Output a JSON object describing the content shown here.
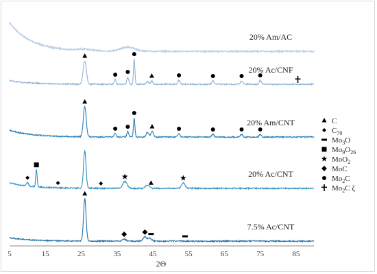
{
  "chart_data": {
    "type": "line",
    "xlabel": "2Θ",
    "ylabel": "",
    "xlim": [
      5,
      90
    ],
    "x_ticks": [
      "5",
      "15",
      "25",
      "35",
      "45",
      "55",
      "65",
      "75",
      "85"
    ],
    "grid": false,
    "legend_position": "right",
    "legend": [
      {
        "symbol": "triangle",
        "name": "C",
        "sub": ""
      },
      {
        "symbol": "diamond-small",
        "name": "C",
        "sub": "70"
      },
      {
        "symbol": "dash",
        "name": "Mo",
        "sub": "3",
        "suffix": "O"
      },
      {
        "symbol": "square",
        "name": "Mo",
        "sub": "9",
        "suffix": "O",
        "sub2": "26"
      },
      {
        "symbol": "star",
        "name": "MoO",
        "sub": "2"
      },
      {
        "symbol": "diamond",
        "name": "MoC",
        "sub": ""
      },
      {
        "symbol": "circle",
        "name": "Mo",
        "sub": "2",
        "suffix": "C"
      },
      {
        "symbol": "cross",
        "name": "Mo",
        "sub": "2",
        "suffix": "C ζ"
      }
    ],
    "series": [
      {
        "name": "20% Am/AC",
        "color": "#bcd0e6",
        "baseline": 75,
        "start_offset": 42,
        "peaks": [
          [
            38,
            6,
            2.0
          ],
          [
            26,
            2,
            2.0
          ]
        ],
        "markers": []
      },
      {
        "name": "20% Ac/CNF",
        "color": "#8fb3d6",
        "baseline": 123,
        "start_offset": 5,
        "peaks": [
          [
            26,
            34,
            0.45
          ],
          [
            34.5,
            7,
            0.25
          ],
          [
            38,
            11,
            0.25
          ],
          [
            39.8,
            37,
            0.2
          ],
          [
            43.5,
            4,
            0.3
          ],
          [
            44.7,
            5,
            0.3
          ],
          [
            52.3,
            6,
            0.3
          ],
          [
            61.8,
            5,
            0.3
          ],
          [
            69.8,
            5,
            0.3
          ],
          [
            75,
            6,
            0.3
          ]
        ],
        "markers": [
          [
            26,
            "triangle"
          ],
          [
            34.5,
            "circle"
          ],
          [
            38,
            "circle"
          ],
          [
            39.8,
            "circle"
          ],
          [
            44.7,
            "triangle"
          ],
          [
            52.3,
            "circle"
          ],
          [
            61.8,
            "circle"
          ],
          [
            69.8,
            "circle"
          ],
          [
            75,
            "circle"
          ],
          [
            85.5,
            "cross"
          ]
        ]
      },
      {
        "name": "20% Am/CNT",
        "color": "#2a7fb8",
        "baseline": 200,
        "start_offset": 10,
        "peaks": [
          [
            26,
            44,
            0.4
          ],
          [
            34.5,
            5,
            0.25
          ],
          [
            38,
            8,
            0.25
          ],
          [
            39.8,
            28,
            0.2
          ],
          [
            43.5,
            7,
            0.35
          ],
          [
            44.8,
            8,
            0.35
          ],
          [
            52.3,
            5,
            0.3
          ],
          [
            61.8,
            4,
            0.3
          ],
          [
            69.8,
            4,
            0.3
          ],
          [
            75,
            4,
            0.3
          ]
        ],
        "markers": [
          [
            26,
            "triangle"
          ],
          [
            34.5,
            "circle"
          ],
          [
            38,
            "circle"
          ],
          [
            39.8,
            "circle"
          ],
          [
            44.8,
            "triangle"
          ],
          [
            52.3,
            "circle"
          ],
          [
            61.8,
            "circle"
          ],
          [
            69.8,
            "circle"
          ],
          [
            75,
            "circle"
          ]
        ]
      },
      {
        "name": "20% Ac/CNT",
        "color": "#2e8fc6",
        "baseline": 275,
        "start_offset": 8,
        "peaks": [
          [
            10,
            5,
            0.3
          ],
          [
            12.5,
            25,
            0.2
          ],
          [
            26,
            55,
            0.35
          ],
          [
            37.2,
            10,
            0.6
          ],
          [
            43.5,
            5,
            0.5
          ],
          [
            53.5,
            8,
            0.5
          ]
        ],
        "markers": [
          [
            10,
            "diamond-small"
          ],
          [
            12.5,
            "square"
          ],
          [
            18.5,
            "diamond-small"
          ],
          [
            30.5,
            "diamond-small"
          ],
          [
            37.2,
            "star"
          ],
          [
            44.5,
            "triangle"
          ],
          [
            53.5,
            "star"
          ]
        ]
      },
      {
        "name": "7.5% Ac/CNT",
        "color": "#2873a8",
        "baseline": 352,
        "start_offset": 5,
        "peaks": [
          [
            26,
            62,
            0.35
          ],
          [
            37,
            3,
            0.5
          ],
          [
            42.8,
            6,
            0.5
          ],
          [
            44.2,
            4,
            0.5
          ]
        ],
        "markers": [
          [
            26,
            "triangle"
          ],
          [
            37,
            "diamond"
          ],
          [
            42.8,
            "diamond"
          ],
          [
            44.5,
            "dash"
          ],
          [
            54,
            "dash"
          ]
        ]
      }
    ]
  }
}
